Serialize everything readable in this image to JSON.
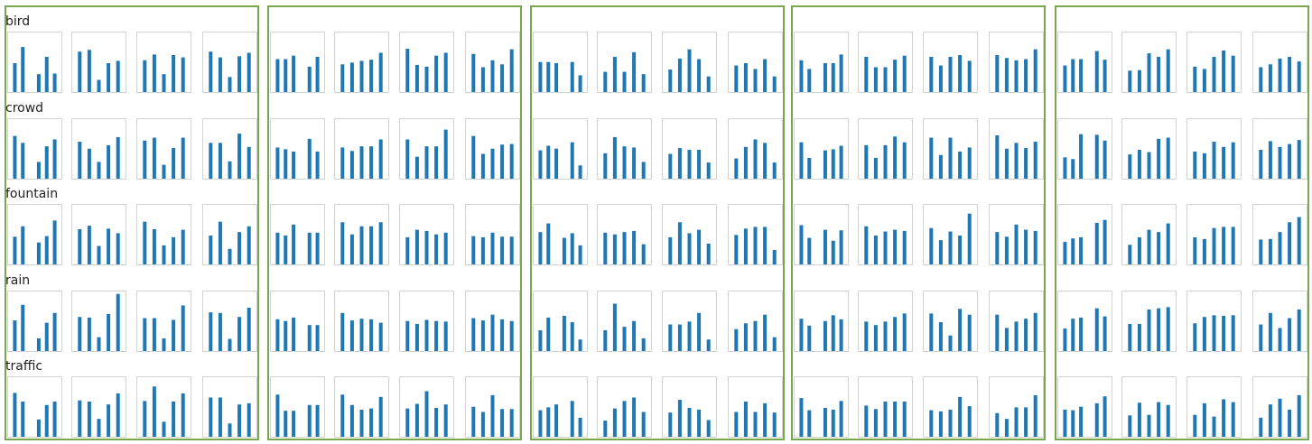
{
  "bar_color": "#1f77b4",
  "frame_color": "#d3d3d3",
  "group_border_color": "#77a84f",
  "row_labels": [
    "bird",
    "crowd",
    "fountain",
    "rain",
    "traffic"
  ],
  "chart_data": {
    "type": "bar",
    "layout": "small-multiples grid: 5 rows x 5 groups x 4 mini bar charts",
    "rows": [
      "bird",
      "crowd",
      "fountain",
      "rain",
      "traffic"
    ],
    "ylim": [
      0,
      1
    ],
    "groups": [
      {
        "group": 1,
        "panels": {
          "bird": [
            [
              0.5,
              0.78,
              0,
              0.31,
              0.61,
              0.32
            ],
            [
              0.7,
              0.73,
              0.21,
              0.5,
              0.54
            ],
            [
              0.55,
              0.65,
              0.31,
              0.64,
              0.6
            ],
            [
              0.7,
              0.6,
              0.26,
              0.62,
              0.68
            ]
          ],
          "crowd": [
            [
              0.74,
              0.62,
              0,
              0.29,
              0.56,
              0.68
            ],
            [
              0.64,
              0.52,
              0.29,
              0.58,
              0.72
            ],
            [
              0.66,
              0.71,
              0.24,
              0.53,
              0.71
            ],
            [
              0.62,
              0.62,
              0.3,
              0.78,
              0.55
            ]
          ],
          "fountain": [
            [
              0.48,
              0.66,
              0,
              0.38,
              0.49,
              0.76
            ],
            [
              0.61,
              0.67,
              0.32,
              0.62,
              0.54
            ],
            [
              0.74,
              0.61,
              0.33,
              0.47,
              0.6
            ],
            [
              0.5,
              0.74,
              0.27,
              0.56,
              0.66
            ]
          ],
          "rain": [
            [
              0.53,
              0.8,
              0,
              0.22,
              0.49,
              0.66
            ],
            [
              0.59,
              0.58,
              0.24,
              0.64,
              0.99
            ],
            [
              0.57,
              0.57,
              0.22,
              0.54,
              0.79
            ],
            [
              0.67,
              0.66,
              0.21,
              0.59,
              0.75
            ]
          ],
          "traffic": [
            [
              0.76,
              0.61,
              0,
              0.3,
              0.55,
              0.61
            ],
            [
              0.63,
              0.61,
              0.31,
              0.56,
              0.75
            ],
            [
              0.62,
              0.87,
              0.26,
              0.61,
              0.75
            ],
            [
              0.68,
              0.68,
              0.23,
              0.56,
              0.58
            ]
          ]
        }
      },
      {
        "group": 2,
        "panels": {
          "bird": [
            [
              0.57,
              0.57,
              0.63,
              0,
              0.44,
              0.61
            ],
            [
              0.48,
              0.51,
              0.54,
              0.56,
              0.68
            ],
            [
              0.75,
              0.47,
              0.44,
              0.63,
              0.68
            ],
            [
              0.66,
              0.43,
              0.55,
              0.48,
              0.74
            ]
          ],
          "crowd": [
            [
              0.54,
              0.51,
              0.47,
              0,
              0.69,
              0.47
            ],
            [
              0.54,
              0.48,
              0.56,
              0.56,
              0.68
            ],
            [
              0.68,
              0.38,
              0.56,
              0.56,
              0.85
            ],
            [
              0.74,
              0.43,
              0.52,
              0.59,
              0.6
            ]
          ],
          "fountain": [
            [
              0.55,
              0.5,
              0.69,
              0,
              0.55,
              0.55
            ],
            [
              0.73,
              0.52,
              0.66,
              0.66,
              0.73
            ],
            [
              0.47,
              0.6,
              0.58,
              0.52,
              0.55
            ],
            [
              0.49,
              0.47,
              0.55,
              0.48,
              0.48
            ]
          ],
          "rain": [
            [
              0.55,
              0.52,
              0.58,
              0,
              0.45,
              0.45
            ],
            [
              0.66,
              0.53,
              0.56,
              0.55,
              0.49
            ],
            [
              0.52,
              0.47,
              0.54,
              0.52,
              0.51
            ],
            [
              0.57,
              0.53,
              0.63,
              0.55,
              0.52
            ]
          ],
          "traffic": [
            [
              0.73,
              0.45,
              0.45,
              0,
              0.55,
              0.55
            ],
            [
              0.73,
              0.55,
              0.47,
              0.49,
              0.69
            ],
            [
              0.49,
              0.57,
              0.79,
              0.5,
              0.56
            ],
            [
              0.52,
              0.43,
              0.72,
              0.48,
              0.48
            ]
          ]
        }
      },
      {
        "group": 3,
        "panels": {
          "bird": [
            [
              0.52,
              0.52,
              0.5,
              0,
              0.52,
              0.29
            ],
            [
              0.35,
              0.61,
              0.35,
              0.69,
              0.31
            ],
            [
              0.39,
              0.58,
              0.74,
              0.57,
              0.27
            ],
            [
              0.46,
              0.5,
              0.4,
              0.57,
              0.27
            ]
          ],
          "crowd": [
            [
              0.49,
              0.57,
              0.52,
              0,
              0.63,
              0.23
            ],
            [
              0.44,
              0.72,
              0.56,
              0.54,
              0.29
            ],
            [
              0.43,
              0.53,
              0.5,
              0.5,
              0.28
            ],
            [
              0.35,
              0.55,
              0.68,
              0.62,
              0.28
            ]
          ],
          "fountain": [
            [
              0.56,
              0.71,
              0,
              0.46,
              0.54,
              0.33
            ],
            [
              0.55,
              0.52,
              0.56,
              0.58,
              0.35
            ],
            [
              0.47,
              0.73,
              0.54,
              0.6,
              0.36
            ],
            [
              0.51,
              0.62,
              0.65,
              0.65,
              0.25
            ]
          ],
          "rain": [
            [
              0.36,
              0.58,
              0,
              0.61,
              0.5,
              0.2
            ],
            [
              0.36,
              0.82,
              0.42,
              0.52,
              0.22
            ],
            [
              0.46,
              0.46,
              0.51,
              0.66,
              0.2
            ],
            [
              0.38,
              0.48,
              0.52,
              0.63,
              0.24
            ]
          ],
          "traffic": [
            [
              0.46,
              0.51,
              0.56,
              0,
              0.62,
              0.33
            ],
            [
              0.28,
              0.49,
              0.62,
              0.68,
              0.43
            ],
            [
              0.42,
              0.64,
              0.5,
              0.47,
              0.29
            ],
            [
              0.43,
              0.61,
              0.43,
              0.58,
              0.42
            ]
          ]
        }
      },
      {
        "group": 4,
        "panels": {
          "bird": [
            [
              0.55,
              0.4,
              0,
              0.5,
              0.5,
              0.65
            ],
            [
              0.61,
              0.43,
              0.43,
              0.56,
              0.63
            ],
            [
              0.61,
              0.46,
              0.61,
              0.64,
              0.54
            ],
            [
              0.64,
              0.59,
              0.55,
              0.57,
              0.74
            ]
          ],
          "crowd": [
            [
              0.63,
              0.36,
              0,
              0.49,
              0.51,
              0.57
            ],
            [
              0.58,
              0.36,
              0.58,
              0.73,
              0.63
            ],
            [
              0.71,
              0.41,
              0.71,
              0.47,
              0.54
            ],
            [
              0.75,
              0.52,
              0.62,
              0.53,
              0.64
            ]
          ],
          "fountain": [
            [
              0.68,
              0.46,
              0,
              0.6,
              0.41,
              0.59
            ],
            [
              0.66,
              0.5,
              0.57,
              0.6,
              0.58
            ],
            [
              0.63,
              0.42,
              0.57,
              0.5,
              0.88
            ],
            [
              0.56,
              0.48,
              0.69,
              0.6,
              0.58
            ]
          ],
          "rain": [
            [
              0.56,
              0.44,
              0,
              0.52,
              0.62,
              0.55
            ],
            [
              0.51,
              0.45,
              0.51,
              0.59,
              0.65
            ],
            [
              0.65,
              0.5,
              0.27,
              0.73,
              0.63
            ],
            [
              0.63,
              0.4,
              0.51,
              0.56,
              0.66
            ]
          ],
          "traffic": [
            [
              0.67,
              0.46,
              0,
              0.5,
              0.47,
              0.62
            ],
            [
              0.54,
              0.48,
              0.61,
              0.61,
              0.61
            ],
            [
              0.46,
              0.44,
              0.47,
              0.69,
              0.53
            ],
            [
              0.41,
              0.31,
              0.51,
              0.51,
              0.72
            ]
          ]
        }
      },
      {
        "group": 5,
        "panels": {
          "bird": [
            [
              0.46,
              0.57,
              0.57,
              0,
              0.71,
              0.56
            ],
            [
              0.37,
              0.38,
              0.67,
              0.61,
              0.74
            ],
            [
              0.44,
              0.4,
              0.61,
              0.72,
              0.63
            ],
            [
              0.43,
              0.48,
              0.58,
              0.61,
              0.53
            ]
          ],
          "crowd": [
            [
              0.37,
              0.34,
              0.77,
              0,
              0.76,
              0.66
            ],
            [
              0.42,
              0.5,
              0.46,
              0.69,
              0.71
            ],
            [
              0.47,
              0.44,
              0.64,
              0.55,
              0.63
            ],
            [
              0.5,
              0.65,
              0.55,
              0.6,
              0.67
            ]
          ],
          "fountain": [
            [
              0.39,
              0.45,
              0.47,
              0,
              0.72,
              0.77
            ],
            [
              0.34,
              0.47,
              0.6,
              0.56,
              0.71
            ],
            [
              0.47,
              0.44,
              0.63,
              0.65,
              0.65
            ],
            [
              0.43,
              0.44,
              0.56,
              0.73,
              0.82
            ]
          ],
          "rain": [
            [
              0.39,
              0.56,
              0.58,
              0,
              0.74,
              0.6
            ],
            [
              0.47,
              0.47,
              0.72,
              0.74,
              0.76
            ],
            [
              0.48,
              0.59,
              0.62,
              0.61,
              0.62
            ],
            [
              0.46,
              0.66,
              0.4,
              0.57,
              0.72
            ]
          ],
          "traffic": [
            [
              0.47,
              0.46,
              0.52,
              0,
              0.58,
              0.7
            ],
            [
              0.37,
              0.59,
              0.38,
              0.6,
              0.55
            ],
            [
              0.38,
              0.58,
              0.35,
              0.65,
              0.6
            ],
            [
              0.33,
              0.56,
              0.66,
              0.47,
              0.72
            ]
          ]
        }
      }
    ]
  }
}
